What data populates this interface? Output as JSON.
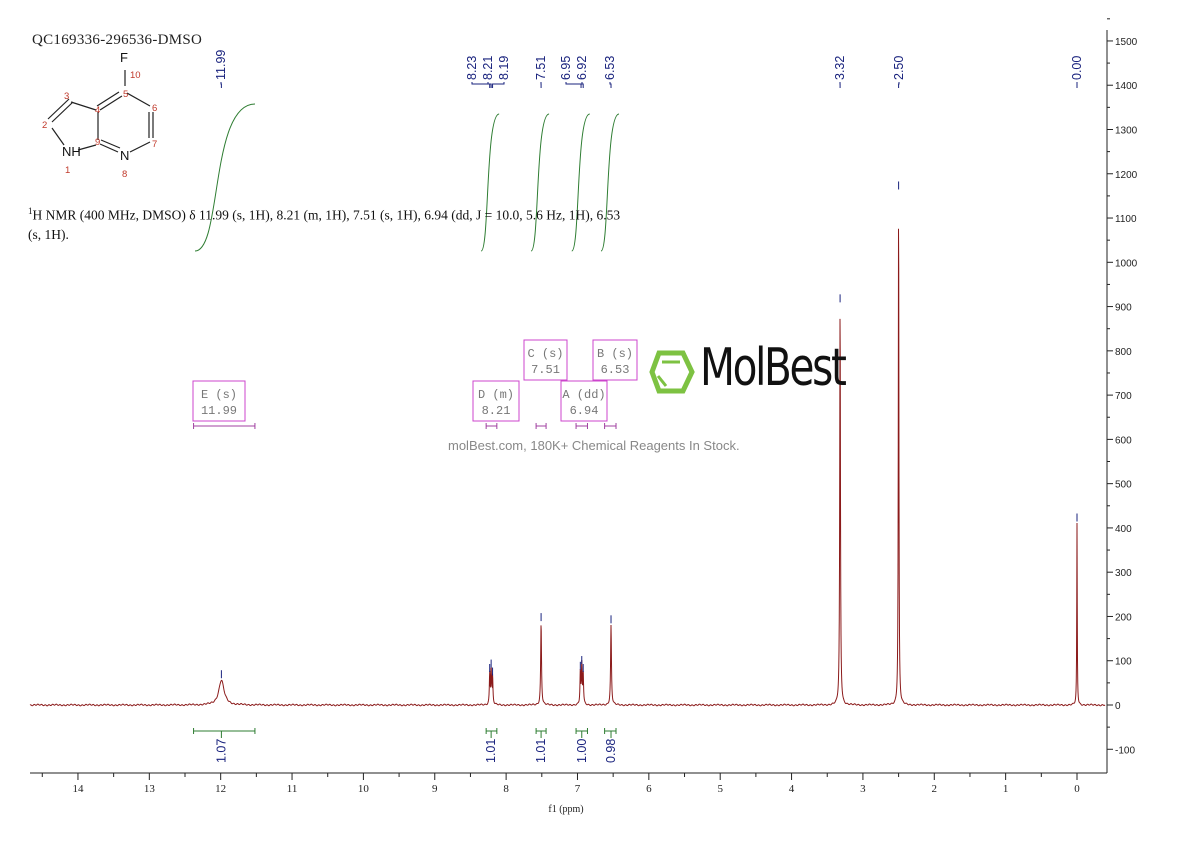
{
  "title": "QC169336-296536-DMSO",
  "summary": {
    "nucleus_sup": "1",
    "text": "H NMR (400 MHz, DMSO) δ 11.99 (s, 1H), 8.21 (m, 1H), 7.51 (s, 1H), 6.94 (dd, J = 10.0, 5.6 Hz, 1H), 6.53 (s, 1H)."
  },
  "structure": {
    "atoms": [
      "F",
      "NH",
      "N"
    ],
    "numbers": [
      "1",
      "2",
      "3",
      "4",
      "5",
      "6",
      "7",
      "8",
      "9",
      "10"
    ]
  },
  "watermark": {
    "brand": "MolBest",
    "tagline": "molBest.com, 180K+ Chemical Reagents In Stock.",
    "logo_color": "#7dc242"
  },
  "chart_data": {
    "type": "line",
    "xlabel": "f1 (ppm)",
    "ylabel": "",
    "xlim": [
      14.67,
      -0.4
    ],
    "ylim": [
      -150,
      1500
    ],
    "x_reversed": true,
    "x_ticks": [
      "14",
      "13",
      "12",
      "11",
      "10",
      "9",
      "8",
      "7",
      "6",
      "5",
      "4",
      "3",
      "2",
      "1",
      "0"
    ],
    "y_ticks": [
      "-100",
      "0",
      "100",
      "200",
      "300",
      "400",
      "500",
      "600",
      "700",
      "800",
      "900",
      "1000",
      "1100",
      "1200",
      "1300",
      "1400",
      "1500"
    ],
    "colors": {
      "spectrum": "#8b1a1a",
      "integral": "#2e7d32",
      "labels": "#1a237e",
      "multiplet": "#cc44cc"
    },
    "peak_labels": [
      "11.99",
      "8.23",
      "8.21",
      "8.19",
      "7.51",
      "6.95",
      "6.92",
      "6.53",
      "3.32",
      "2.50",
      "0.00"
    ],
    "peaks": [
      {
        "ppm": 11.99,
        "height": 56,
        "width": 0.045
      },
      {
        "ppm": 8.23,
        "height": 70,
        "width": 0.006
      },
      {
        "ppm": 8.21,
        "height": 80,
        "width": 0.006
      },
      {
        "ppm": 8.19,
        "height": 62,
        "width": 0.006
      },
      {
        "ppm": 7.51,
        "height": 185,
        "width": 0.007
      },
      {
        "ppm": 6.96,
        "height": 75,
        "width": 0.006
      },
      {
        "ppm": 6.94,
        "height": 88,
        "width": 0.006
      },
      {
        "ppm": 6.92,
        "height": 70,
        "width": 0.006
      },
      {
        "ppm": 6.53,
        "height": 180,
        "width": 0.007
      },
      {
        "ppm": 3.32,
        "height": 905,
        "width": 0.006
      },
      {
        "ppm": 2.5,
        "height": 1160,
        "width": 0.005
      },
      {
        "ppm": 0.0,
        "height": 410,
        "width": 0.004
      }
    ],
    "integrals": [
      {
        "from": 12.38,
        "to": 11.52,
        "center": 11.99,
        "value": "1.07"
      },
      {
        "from": 8.28,
        "to": 8.13,
        "center": 8.21,
        "value": "1.01"
      },
      {
        "from": 7.58,
        "to": 7.44,
        "center": 7.51,
        "value": "1.01"
      },
      {
        "from": 7.02,
        "to": 6.86,
        "center": 6.94,
        "value": "1.00"
      },
      {
        "from": 6.62,
        "to": 6.46,
        "center": 6.53,
        "value": "0.98"
      }
    ],
    "multiplets": [
      {
        "label": "E (s)",
        "shift": "11.99",
        "from": 12.38,
        "to": 11.52
      },
      {
        "label": "D (m)",
        "shift": "8.21",
        "from": 8.28,
        "to": 8.13
      },
      {
        "label": "C (s)",
        "shift": "7.51",
        "from": 7.58,
        "to": 7.44
      },
      {
        "label": "A (dd)",
        "shift": "6.94",
        "from": 7.02,
        "to": 6.86
      },
      {
        "label": "B (s)",
        "shift": "6.53",
        "from": 6.62,
        "to": 6.46
      }
    ]
  }
}
